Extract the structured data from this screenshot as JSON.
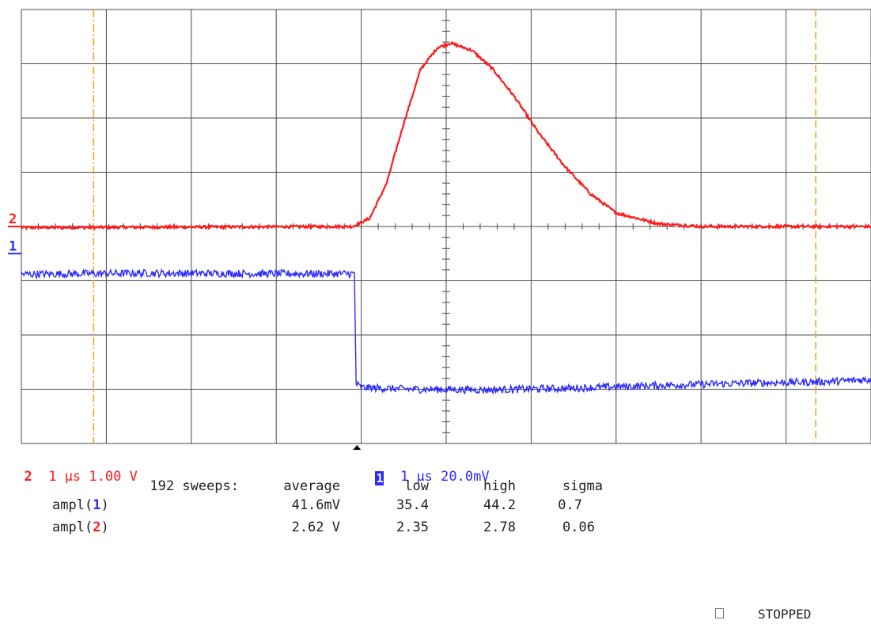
{
  "colors": {
    "grid": "#4a4a4a",
    "ch1": "#2a2aff",
    "ch2": "#ff1a1a",
    "cursor": "#f5a623"
  },
  "channels": [
    {
      "id": "2",
      "label": "2",
      "timebase": "1 µs",
      "scale": "1.00 V",
      "color": "#ff1a1a"
    },
    {
      "id": "1",
      "label": "1",
      "timebase": "1 µs",
      "scale": "20.0mV",
      "color": "#2a2aff"
    }
  ],
  "stats": {
    "header": {
      "sweeps": "192 sweeps:",
      "average": "average",
      "low": "low",
      "high": "high",
      "sigma": "sigma"
    },
    "rows": [
      {
        "name": "ampl(",
        "ch": "1",
        "close": ")",
        "average": "41.6mV",
        "low": "35.4",
        "high": "44.2",
        "sigma": "0.7"
      },
      {
        "name": "ampl(",
        "ch": "2",
        "close": ")",
        "average": "2.62 V",
        "low": "2.35",
        "high": "2.78",
        "sigma": "0.06"
      }
    ]
  },
  "status": "STOPPED",
  "chart_data": {
    "type": "line",
    "x_unit": "div",
    "y_unit": "div",
    "xlim": [
      0,
      10
    ],
    "ylim": [
      -4,
      4
    ],
    "grid": true,
    "cursors_x": [
      0.85,
      9.35
    ],
    "trigger_x": 3.95,
    "series": [
      {
        "name": "2",
        "color": "#ff1a1a",
        "x": [
          0,
          3.9,
          4.1,
          4.3,
          4.5,
          4.7,
          4.9,
          5.05,
          5.3,
          5.55,
          5.8,
          6.1,
          6.4,
          6.7,
          7.0,
          7.5,
          8.0,
          10
        ],
        "y": [
          -0.02,
          0.0,
          0.15,
          0.8,
          1.9,
          2.9,
          3.3,
          3.38,
          3.25,
          2.9,
          2.4,
          1.7,
          1.1,
          0.6,
          0.25,
          0.05,
          0.0,
          0.0
        ]
      },
      {
        "name": "1",
        "color": "#2a2aff",
        "x": [
          0,
          1.5,
          3.0,
          3.92,
          3.94,
          4.0,
          4.6,
          5.5,
          6.5,
          7.5,
          8.5,
          9.5,
          10
        ],
        "y": [
          -0.88,
          -0.86,
          -0.87,
          -0.87,
          -2.9,
          -2.97,
          -3.0,
          -3.01,
          -2.98,
          -2.93,
          -2.89,
          -2.86,
          -2.82
        ]
      }
    ],
    "channel_markers": [
      {
        "label": "2",
        "y": 0.0,
        "color": "#ff1a1a"
      },
      {
        "label": "1",
        "y": -0.5,
        "color": "#2a2aff"
      }
    ]
  }
}
